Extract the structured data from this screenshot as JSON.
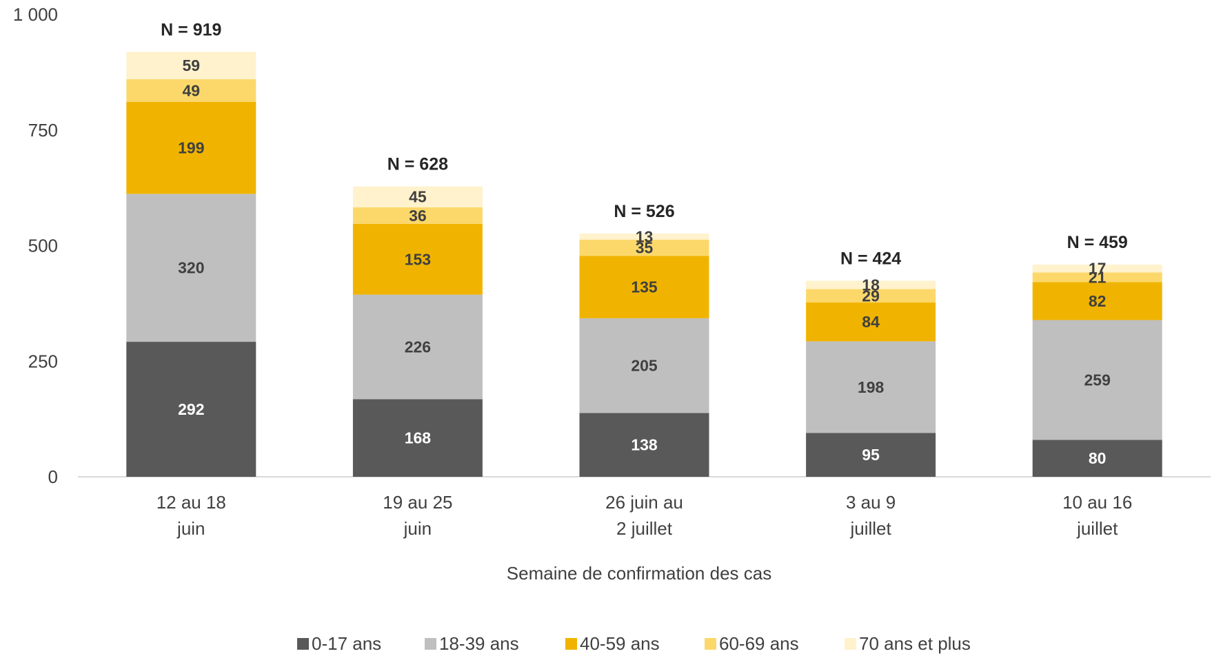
{
  "chart_data": {
    "type": "bar",
    "stacked": true,
    "categories": [
      [
        "12 au 18",
        "juin"
      ],
      [
        "19 au 25",
        "juin"
      ],
      [
        "26 juin au",
        "2 juillet"
      ],
      [
        "3 au 9",
        "juillet"
      ],
      [
        "10 au 16",
        "juillet"
      ]
    ],
    "series": [
      {
        "name": "0-17 ans",
        "color": "#595959",
        "label_color": "#ffffff",
        "values": [
          292,
          168,
          138,
          95,
          80
        ]
      },
      {
        "name": "18-39 ans",
        "color": "#bfbfbf",
        "label_color": "#404040",
        "values": [
          320,
          226,
          205,
          198,
          259
        ]
      },
      {
        "name": "40-59 ans",
        "color": "#f0b400",
        "label_color": "#404040",
        "values": [
          199,
          153,
          135,
          84,
          82
        ]
      },
      {
        "name": "60-69 ans",
        "color": "#fcd86b",
        "label_color": "#404040",
        "values": [
          49,
          36,
          35,
          29,
          21
        ]
      },
      {
        "name": "70 ans et plus",
        "color": "#fff2cc",
        "label_color": "#404040",
        "values": [
          59,
          45,
          13,
          18,
          17
        ]
      }
    ],
    "totals": [
      "N = 919",
      "N = 628",
      "N = 526",
      "N = 424",
      "N = 459"
    ],
    "yticks": [
      "0",
      "250",
      "500",
      "750",
      "1 000"
    ],
    "ytick_values": [
      0,
      250,
      500,
      750,
      1000
    ],
    "ylim": [
      0,
      1000
    ],
    "xlabel": "Semaine de confirmation des cas",
    "ylabel": "",
    "grid": false,
    "legend_position": "bottom"
  }
}
